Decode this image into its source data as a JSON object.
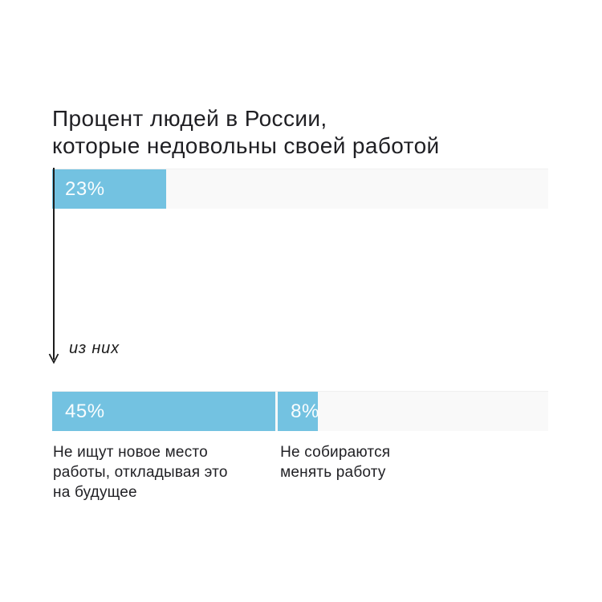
{
  "title": "Процент людей в России,\nкоторые недовольны своей работой",
  "colors": {
    "bar_fill": "#73C2E1",
    "track_fill": "#F9F9F9",
    "text": "#1F1F23",
    "arrow": "#1C1C1C",
    "background": "#FFFFFF"
  },
  "chart_data": {
    "type": "bar",
    "orientation": "horizontal",
    "title": "Процент людей в России, которые недовольны своей работой",
    "unit": "%",
    "axis_max": 100,
    "grid": false,
    "legend": false,
    "annotation": "из них",
    "rows": [
      {
        "name": "total",
        "bars": [
          {
            "value": 23,
            "label": "23%"
          }
        ]
      },
      {
        "name": "breakdown",
        "bars": [
          {
            "value": 45,
            "label": "45%",
            "caption": "Не ищут новое место\nработы, откладывая это\nна будущее"
          },
          {
            "value": 8,
            "label": "8%",
            "caption": "Не собираются\nменять работу"
          }
        ]
      }
    ]
  }
}
